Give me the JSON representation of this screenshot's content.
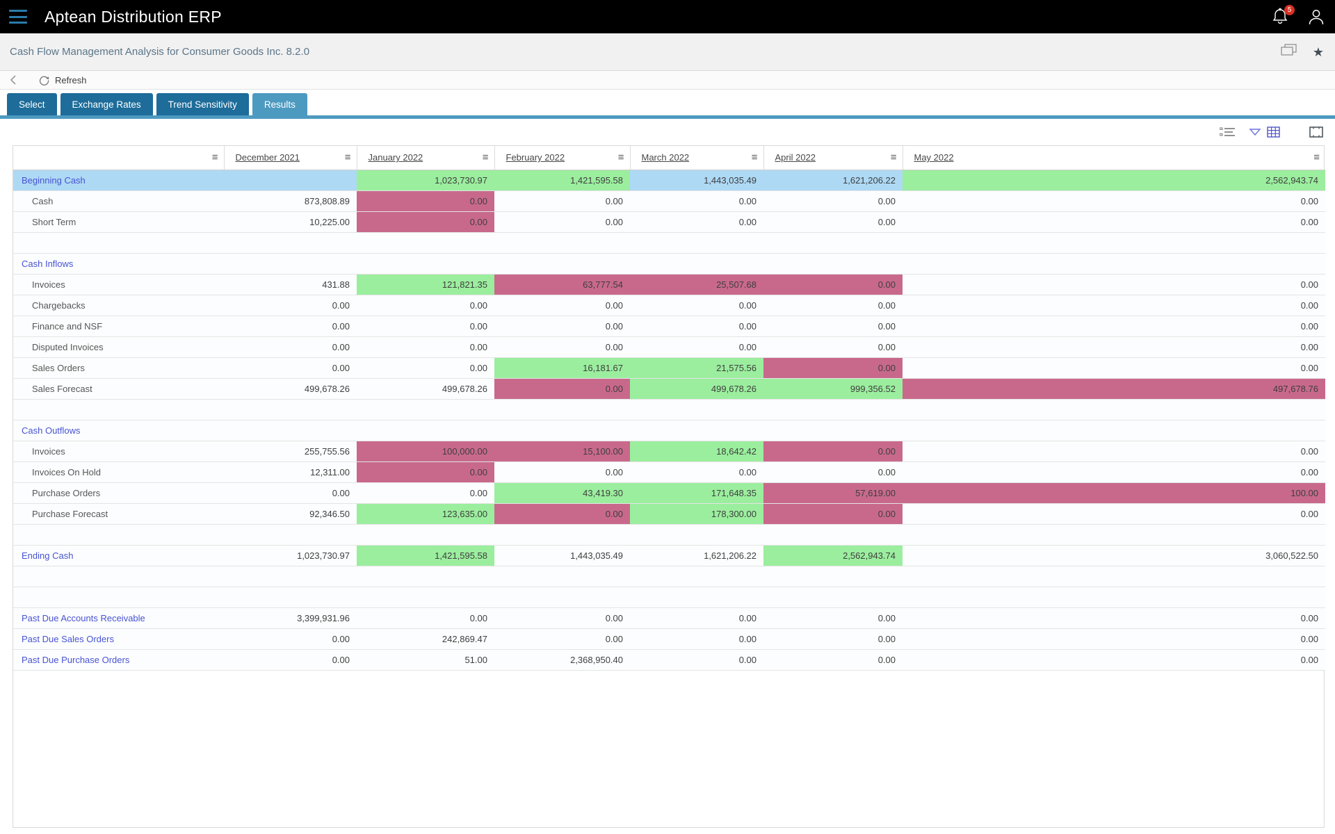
{
  "app": {
    "title": "Aptean Distribution ERP"
  },
  "topbar": {
    "notification_count": "5"
  },
  "breadcrumb": {
    "title": "Cash Flow Management Analysis for Consumer Goods Inc. 8.2.0"
  },
  "toolbar": {
    "refresh_label": "Refresh"
  },
  "icons": {
    "column_menu": "≡",
    "favorite": "★"
  },
  "tabs": [
    {
      "label": "Select",
      "active": false
    },
    {
      "label": "Exchange Rates",
      "active": false
    },
    {
      "label": "Trend Sensitivity",
      "active": false
    },
    {
      "label": "Results",
      "active": true
    }
  ],
  "colors": {
    "positive_cell": "#9bee9e",
    "negative_cell": "#c8698b",
    "highlight_cell": "#aed9f5",
    "active_tab": "#4d9ac0",
    "inactive_tab": "#1d6c99"
  },
  "grid": {
    "columns": [
      "",
      "December 2021",
      "January 2022",
      "February 2022",
      "March 2022",
      "April 2022",
      "May 2022"
    ],
    "rows": [
      {
        "label": "Beginning Cash",
        "style": "link",
        "label_bg": "b",
        "cells": [
          [
            "",
            "b"
          ],
          [
            "1,023,730.97",
            "g"
          ],
          [
            "1,421,595.58",
            "g"
          ],
          [
            "1,443,035.49",
            "b"
          ],
          [
            "1,621,206.22",
            "b"
          ],
          [
            "2,562,943.74",
            "g"
          ]
        ]
      },
      {
        "label": "Cash",
        "style": "item",
        "cells": [
          [
            "873,808.89",
            "w"
          ],
          [
            "0.00",
            "p"
          ],
          [
            "0.00",
            "w"
          ],
          [
            "0.00",
            "w"
          ],
          [
            "0.00",
            "w"
          ],
          [
            "0.00",
            "w"
          ]
        ]
      },
      {
        "label": "Short Term",
        "style": "item",
        "cells": [
          [
            "10,225.00",
            "w"
          ],
          [
            "0.00",
            "p"
          ],
          [
            "0.00",
            "w"
          ],
          [
            "0.00",
            "w"
          ],
          [
            "0.00",
            "w"
          ],
          [
            "0.00",
            "w"
          ]
        ]
      },
      {
        "label": "",
        "style": "blank",
        "cells": [
          [
            "",
            "w"
          ],
          [
            "",
            "w"
          ],
          [
            "",
            "w"
          ],
          [
            "",
            "w"
          ],
          [
            "",
            "w"
          ],
          [
            "",
            "w"
          ]
        ]
      },
      {
        "label": "Cash Inflows",
        "style": "link",
        "cells": [
          [
            "",
            "w"
          ],
          [
            "",
            "w"
          ],
          [
            "",
            "w"
          ],
          [
            "",
            "w"
          ],
          [
            "",
            "w"
          ],
          [
            "",
            "w"
          ]
        ]
      },
      {
        "label": "Invoices",
        "style": "item",
        "cells": [
          [
            "431.88",
            "w"
          ],
          [
            "121,821.35",
            "g"
          ],
          [
            "63,777.54",
            "p"
          ],
          [
            "25,507.68",
            "p"
          ],
          [
            "0.00",
            "p"
          ],
          [
            "0.00",
            "w"
          ]
        ]
      },
      {
        "label": "Chargebacks",
        "style": "item",
        "cells": [
          [
            "0.00",
            "w"
          ],
          [
            "0.00",
            "w"
          ],
          [
            "0.00",
            "w"
          ],
          [
            "0.00",
            "w"
          ],
          [
            "0.00",
            "w"
          ],
          [
            "0.00",
            "w"
          ]
        ]
      },
      {
        "label": "Finance and NSF",
        "style": "item",
        "cells": [
          [
            "0.00",
            "w"
          ],
          [
            "0.00",
            "w"
          ],
          [
            "0.00",
            "w"
          ],
          [
            "0.00",
            "w"
          ],
          [
            "0.00",
            "w"
          ],
          [
            "0.00",
            "w"
          ]
        ]
      },
      {
        "label": "Disputed Invoices",
        "style": "item",
        "cells": [
          [
            "0.00",
            "w"
          ],
          [
            "0.00",
            "w"
          ],
          [
            "0.00",
            "w"
          ],
          [
            "0.00",
            "w"
          ],
          [
            "0.00",
            "w"
          ],
          [
            "0.00",
            "w"
          ]
        ]
      },
      {
        "label": "Sales Orders",
        "style": "item",
        "cells": [
          [
            "0.00",
            "w"
          ],
          [
            "0.00",
            "w"
          ],
          [
            "16,181.67",
            "g"
          ],
          [
            "21,575.56",
            "g"
          ],
          [
            "0.00",
            "p"
          ],
          [
            "0.00",
            "w"
          ]
        ]
      },
      {
        "label": "Sales Forecast",
        "style": "item",
        "cells": [
          [
            "499,678.26",
            "w"
          ],
          [
            "499,678.26",
            "w"
          ],
          [
            "0.00",
            "p"
          ],
          [
            "499,678.26",
            "g"
          ],
          [
            "999,356.52",
            "g"
          ],
          [
            "497,678.76",
            "p"
          ]
        ]
      },
      {
        "label": "",
        "style": "blank",
        "cells": [
          [
            "",
            "w"
          ],
          [
            "",
            "w"
          ],
          [
            "",
            "w"
          ],
          [
            "",
            "w"
          ],
          [
            "",
            "w"
          ],
          [
            "",
            "w"
          ]
        ]
      },
      {
        "label": "Cash Outflows",
        "style": "link",
        "cells": [
          [
            "",
            "w"
          ],
          [
            "",
            "w"
          ],
          [
            "",
            "w"
          ],
          [
            "",
            "w"
          ],
          [
            "",
            "w"
          ],
          [
            "",
            "w"
          ]
        ]
      },
      {
        "label": "Invoices",
        "style": "item",
        "cells": [
          [
            "255,755.56",
            "w"
          ],
          [
            "100,000.00",
            "p"
          ],
          [
            "15,100.00",
            "p"
          ],
          [
            "18,642.42",
            "g"
          ],
          [
            "0.00",
            "p"
          ],
          [
            "0.00",
            "w"
          ]
        ]
      },
      {
        "label": "Invoices On Hold",
        "style": "item",
        "cells": [
          [
            "12,311.00",
            "w"
          ],
          [
            "0.00",
            "p"
          ],
          [
            "0.00",
            "w"
          ],
          [
            "0.00",
            "w"
          ],
          [
            "0.00",
            "w"
          ],
          [
            "0.00",
            "w"
          ]
        ]
      },
      {
        "label": "Purchase Orders",
        "style": "item",
        "cells": [
          [
            "0.00",
            "w"
          ],
          [
            "0.00",
            "w"
          ],
          [
            "43,419.30",
            "g"
          ],
          [
            "171,648.35",
            "g"
          ],
          [
            "57,619.00",
            "p"
          ],
          [
            "100.00",
            "p"
          ]
        ]
      },
      {
        "label": "Purchase Forecast",
        "style": "item",
        "cells": [
          [
            "92,346.50",
            "w"
          ],
          [
            "123,635.00",
            "g"
          ],
          [
            "0.00",
            "p"
          ],
          [
            "178,300.00",
            "g"
          ],
          [
            "0.00",
            "p"
          ],
          [
            "0.00",
            "w"
          ]
        ]
      },
      {
        "label": "",
        "style": "blank",
        "cells": [
          [
            "",
            "w"
          ],
          [
            "",
            "w"
          ],
          [
            "",
            "w"
          ],
          [
            "",
            "w"
          ],
          [
            "",
            "w"
          ],
          [
            "",
            "w"
          ]
        ]
      },
      {
        "label": "Ending Cash",
        "style": "link",
        "cells": [
          [
            "1,023,730.97",
            "w"
          ],
          [
            "1,421,595.58",
            "g"
          ],
          [
            "1,443,035.49",
            "w"
          ],
          [
            "1,621,206.22",
            "w"
          ],
          [
            "2,562,943.74",
            "g"
          ],
          [
            "3,060,522.50",
            "w"
          ]
        ]
      },
      {
        "label": "",
        "style": "blank",
        "cells": [
          [
            "",
            "w"
          ],
          [
            "",
            "w"
          ],
          [
            "",
            "w"
          ],
          [
            "",
            "w"
          ],
          [
            "",
            "w"
          ],
          [
            "",
            "w"
          ]
        ]
      },
      {
        "label": "",
        "style": "blank",
        "cells": [
          [
            "",
            "w"
          ],
          [
            "",
            "w"
          ],
          [
            "",
            "w"
          ],
          [
            "",
            "w"
          ],
          [
            "",
            "w"
          ],
          [
            "",
            "w"
          ]
        ]
      },
      {
        "label": "Past Due Accounts Receivable",
        "style": "link",
        "cells": [
          [
            "3,399,931.96",
            "w"
          ],
          [
            "0.00",
            "w"
          ],
          [
            "0.00",
            "w"
          ],
          [
            "0.00",
            "w"
          ],
          [
            "0.00",
            "w"
          ],
          [
            "0.00",
            "w"
          ]
        ]
      },
      {
        "label": "Past Due Sales Orders",
        "style": "link",
        "cells": [
          [
            "0.00",
            "w"
          ],
          [
            "242,869.47",
            "w"
          ],
          [
            "0.00",
            "w"
          ],
          [
            "0.00",
            "w"
          ],
          [
            "0.00",
            "w"
          ],
          [
            "0.00",
            "w"
          ]
        ]
      },
      {
        "label": "Past Due Purchase Orders",
        "style": "link",
        "cells": [
          [
            "0.00",
            "w"
          ],
          [
            "51.00",
            "w"
          ],
          [
            "2,368,950.40",
            "w"
          ],
          [
            "0.00",
            "w"
          ],
          [
            "0.00",
            "w"
          ],
          [
            "0.00",
            "w"
          ]
        ]
      }
    ]
  }
}
